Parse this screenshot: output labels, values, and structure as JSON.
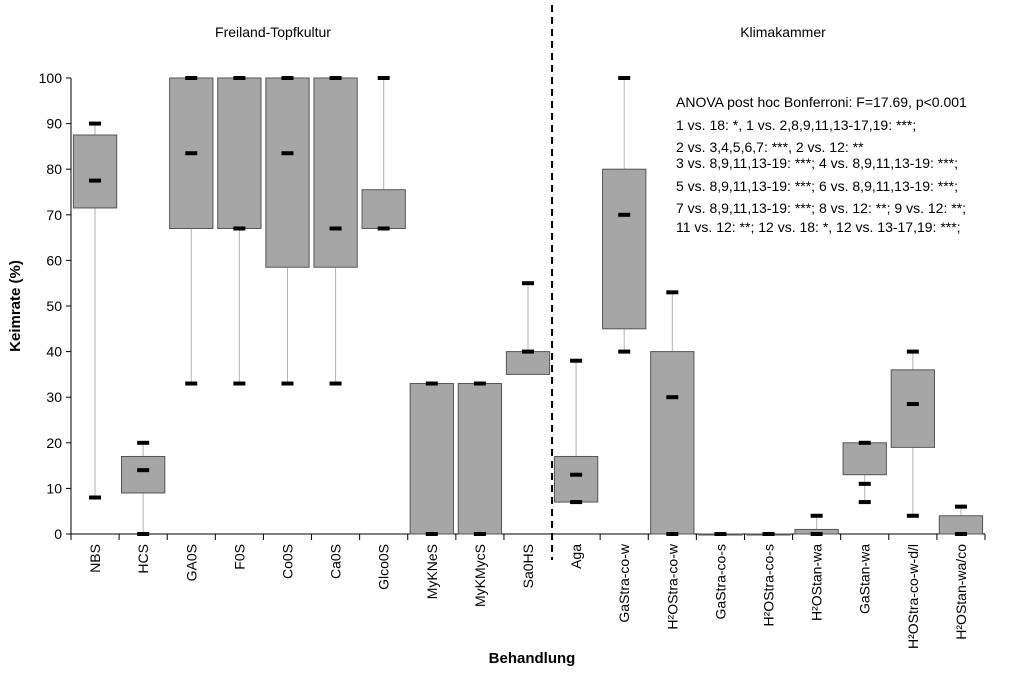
{
  "chart_data": {
    "type": "box",
    "title": "",
    "panels": [
      "Freiland-Topfkultur",
      "Klimakammer"
    ],
    "xlabel": "Behandlung",
    "ylabel": "Keimrate (%)",
    "ylim": [
      0,
      100
    ],
    "yticks": [
      0,
      10,
      20,
      30,
      40,
      50,
      60,
      70,
      80,
      90,
      100
    ],
    "categories": [
      "NBS",
      "HCS",
      "GA0S",
      "F0S",
      "Co0S",
      "Ca0S",
      "Glco0S",
      "MyKNeS",
      "MyKMycS",
      "Sa0HS",
      "Aga",
      "GaStra-co-w",
      "H²OStra-co-w",
      "GaStra-co-s",
      "H²OStra-co-s",
      "H²OStan-wa",
      "GaStan-wa",
      "H²OStra-co-w-d/l",
      "H²OStan-wa/co"
    ],
    "boxes": [
      {
        "q1": 71.5,
        "q3": 87.5,
        "whisker_low": 8,
        "whisker_high": 90,
        "marks": [
          90,
          77.5,
          8
        ]
      },
      {
        "q1": 9,
        "q3": 17,
        "whisker_low": 0,
        "whisker_high": 20,
        "marks": [
          20,
          14,
          0
        ]
      },
      {
        "q1": 67,
        "q3": 100,
        "whisker_low": 33,
        "whisker_high": 100,
        "marks": [
          100,
          83.5,
          33
        ]
      },
      {
        "q1": 67,
        "q3": 100,
        "whisker_low": 33,
        "whisker_high": 100,
        "marks": [
          100,
          67,
          33
        ]
      },
      {
        "q1": 58.5,
        "q3": 100,
        "whisker_low": 33,
        "whisker_high": 100,
        "marks": [
          100,
          83.5,
          33
        ]
      },
      {
        "q1": 58.5,
        "q3": 100,
        "whisker_low": 33,
        "whisker_high": 100,
        "marks": [
          100,
          67,
          33
        ]
      },
      {
        "q1": 67,
        "q3": 75.5,
        "whisker_low": 67,
        "whisker_high": 100,
        "marks": [
          100,
          67
        ]
      },
      {
        "q1": 0,
        "q3": 33,
        "whisker_low": 0,
        "whisker_high": 33,
        "marks": [
          33,
          0
        ]
      },
      {
        "q1": 0,
        "q3": 33,
        "whisker_low": 0,
        "whisker_high": 33,
        "marks": [
          33,
          0
        ]
      },
      {
        "q1": 35,
        "q3": 40,
        "whisker_low": 35,
        "whisker_high": 55,
        "marks": [
          55,
          40
        ]
      },
      {
        "q1": 7,
        "q3": 17,
        "whisker_low": 7,
        "whisker_high": 38,
        "marks": [
          38,
          13,
          7
        ]
      },
      {
        "q1": 45,
        "q3": 80,
        "whisker_low": 40,
        "whisker_high": 100,
        "marks": [
          100,
          70,
          40
        ]
      },
      {
        "q1": 0,
        "q3": 40,
        "whisker_low": 0,
        "whisker_high": 53,
        "marks": [
          53,
          30,
          0
        ]
      },
      {
        "q1": 0,
        "q3": 0,
        "whisker_low": 0,
        "whisker_high": 0,
        "marks": [
          0
        ]
      },
      {
        "q1": 0,
        "q3": 0,
        "whisker_low": 0,
        "whisker_high": 0,
        "marks": [
          0
        ]
      },
      {
        "q1": 0,
        "q3": 1,
        "whisker_low": 0,
        "whisker_high": 4,
        "marks": [
          4,
          0
        ]
      },
      {
        "q1": 13,
        "q3": 20,
        "whisker_low": 7,
        "whisker_high": 20,
        "marks": [
          20,
          11,
          7
        ]
      },
      {
        "q1": 19,
        "q3": 36,
        "whisker_low": 4,
        "whisker_high": 40,
        "marks": [
          40,
          28.5,
          4
        ]
      },
      {
        "q1": 0,
        "q3": 4,
        "whisker_low": 0,
        "whisker_high": 6,
        "marks": [
          6,
          0
        ]
      }
    ],
    "divider_after_category": "Sa0HS",
    "annotation": [
      "ANOVA post hoc Bonferroni: F=17.69, p<0.001",
      "1 vs. 18: *, 1 vs. 2,8,9,11,13-17,19: ***;",
      "2 vs. 3,4,5,6,7: ***, 2 vs. 12: **",
      "3 vs. 8,9,11,13-19: ***; 4 vs. 8,9,11,13-19: ***;",
      "5 vs. 8,9,11,13-19: ***; 6 vs. 8,9,11,13-19: ***;",
      "7 vs. 8,9,11,13-19: ***; 8 vs. 12: **; 9 vs. 12: **;",
      "11 vs. 12: **; 12 vs. 18: *, 12 vs. 13-17,19: ***;"
    ],
    "colors": {
      "box_fill": "#a6a6a6",
      "box_stroke": "#555555",
      "whisker": "#b3b3b3",
      "marker": "#000000"
    }
  }
}
